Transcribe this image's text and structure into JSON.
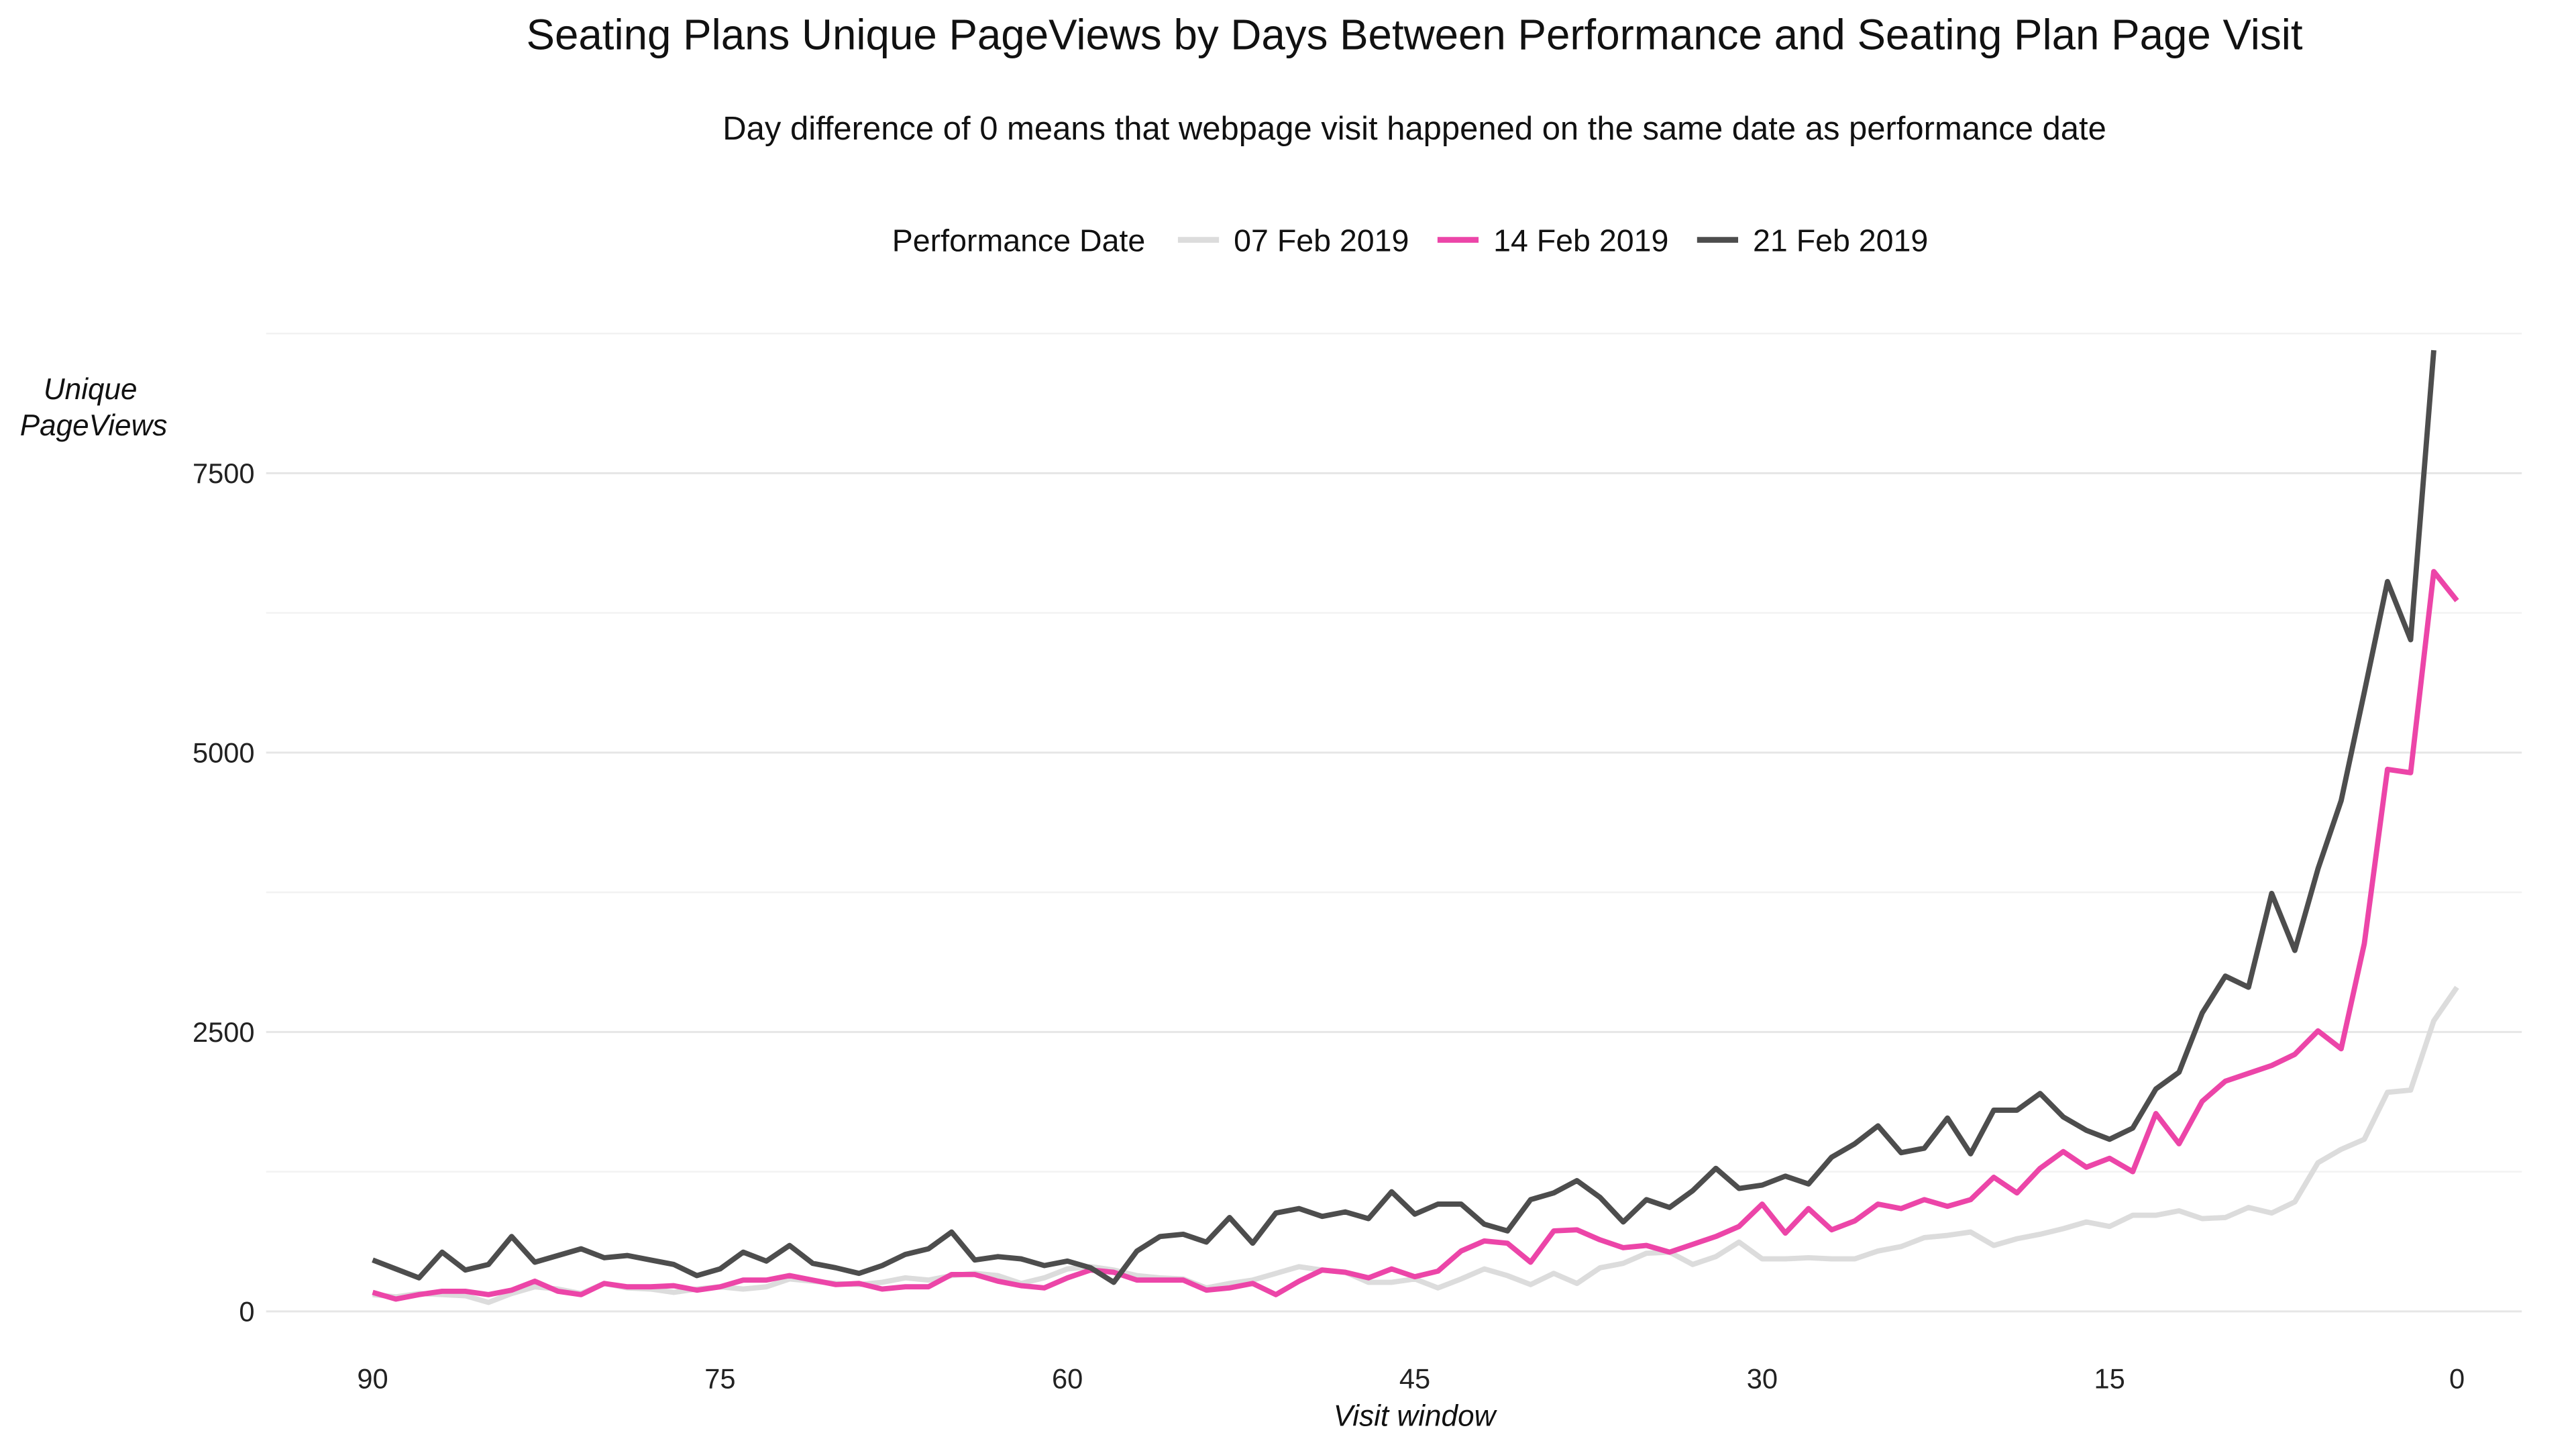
{
  "chart_data": {
    "type": "line",
    "title": "Seating Plans Unique PageViews by Days Between Performance and Seating Plan Page Visit",
    "subtitle": "Day difference of 0 means that webpage visit happened on the same date as performance date",
    "legend_title": "Performance Date",
    "legend_position": "top",
    "xlabel": "Visit window",
    "ylabel": [
      "Unique",
      "PageViews"
    ],
    "x": [
      90,
      89,
      88,
      87,
      86,
      85,
      84,
      83,
      82,
      81,
      80,
      79,
      78,
      77,
      76,
      75,
      74,
      73,
      72,
      71,
      70,
      69,
      68,
      67,
      66,
      65,
      64,
      63,
      62,
      61,
      60,
      59,
      58,
      57,
      56,
      55,
      54,
      53,
      52,
      51,
      50,
      49,
      48,
      47,
      46,
      45,
      44,
      43,
      42,
      41,
      40,
      39,
      38,
      37,
      36,
      35,
      34,
      33,
      32,
      31,
      30,
      29,
      28,
      27,
      26,
      25,
      24,
      23,
      22,
      21,
      20,
      19,
      18,
      17,
      16,
      15,
      14,
      13,
      12,
      11,
      10,
      9,
      8,
      7,
      6,
      5,
      4,
      3,
      2,
      1,
      0
    ],
    "xlim": [
      94.6,
      -2.8
    ],
    "xticks": [
      90,
      75,
      60,
      45,
      30,
      15,
      0
    ],
    "ylim": [
      -320,
      8750
    ],
    "yticks": [
      0,
      2500,
      5000,
      7500
    ],
    "y_minor_ticks": [
      1250,
      3750,
      6250,
      8750
    ],
    "grid": true,
    "series": [
      {
        "name": "07 Feb 2019",
        "color": "#dcdcdc",
        "values": [
          150,
          130,
          160,
          150,
          140,
          80,
          160,
          220,
          200,
          160,
          250,
          210,
          200,
          170,
          200,
          220,
          200,
          220,
          290,
          270,
          250,
          240,
          260,
          300,
          280,
          320,
          340,
          320,
          250,
          300,
          380,
          400,
          370,
          320,
          300,
          290,
          210,
          250,
          280,
          340,
          400,
          370,
          350,
          260,
          260,
          290,
          210,
          290,
          380,
          320,
          240,
          340,
          250,
          390,
          430,
          520,
          530,
          420,
          490,
          620,
          470,
          470,
          480,
          470,
          470,
          540,
          580,
          660,
          680,
          710,
          590,
          650,
          690,
          740,
          800,
          760,
          860,
          860,
          900,
          830,
          840,
          930,
          880,
          980,
          1330,
          1450,
          1540,
          1960,
          1980,
          2600,
          2900
        ]
      },
      {
        "name": "14 Feb 2019",
        "color": "#ec45a8",
        "values": [
          170,
          110,
          150,
          180,
          180,
          150,
          190,
          270,
          180,
          150,
          250,
          220,
          220,
          230,
          190,
          220,
          280,
          280,
          320,
          280,
          240,
          250,
          200,
          220,
          220,
          330,
          330,
          270,
          230,
          210,
          300,
          370,
          350,
          280,
          280,
          280,
          190,
          210,
          250,
          150,
          270,
          370,
          350,
          300,
          380,
          310,
          360,
          540,
          630,
          610,
          440,
          720,
          730,
          640,
          570,
          590,
          530,
          600,
          670,
          760,
          960,
          700,
          920,
          730,
          810,
          960,
          920,
          1000,
          940,
          1000,
          1200,
          1060,
          1280,
          1430,
          1290,
          1370,
          1250,
          1770,
          1500,
          1880,
          2060,
          2130,
          2200,
          2300,
          2510,
          2350,
          3290,
          4850,
          4820,
          6620,
          6360
        ]
      },
      {
        "name": "21 Feb 2019",
        "color": "#4d4d4d",
        "values": [
          460,
          380,
          300,
          530,
          370,
          420,
          670,
          440,
          500,
          560,
          480,
          500,
          460,
          420,
          320,
          380,
          530,
          450,
          590,
          430,
          390,
          340,
          410,
          510,
          560,
          710,
          460,
          490,
          470,
          410,
          450,
          390,
          260,
          540,
          670,
          690,
          620,
          840,
          610,
          880,
          920,
          850,
          890,
          830,
          1070,
          870,
          960,
          960,
          780,
          720,
          1000,
          1060,
          1170,
          1020,
          800,
          1000,
          930,
          1080,
          1280,
          1100,
          1130,
          1210,
          1140,
          1380,
          1500,
          1660,
          1420,
          1460,
          1730,
          1410,
          1800,
          1800,
          1950,
          1740,
          1620,
          1540,
          1640,
          1990,
          2140,
          2670,
          3000,
          2900,
          3740,
          3230,
          3960,
          4570,
          5540,
          6530,
          6010,
          8600,
          null
        ]
      }
    ]
  }
}
